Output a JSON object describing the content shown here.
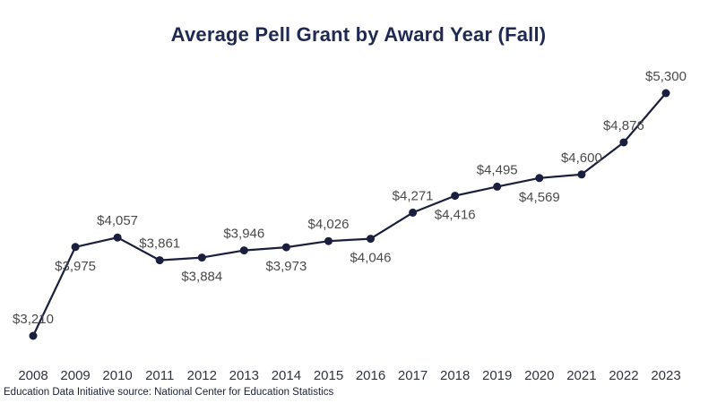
{
  "chart_data": {
    "type": "line",
    "title": "Average Pell Grant by Award Year (Fall)",
    "xlabel": "",
    "ylabel": "",
    "categories": [
      "2008",
      "2009",
      "2010",
      "2011",
      "2012",
      "2013",
      "2014",
      "2015",
      "2016",
      "2017",
      "2018",
      "2019",
      "2020",
      "2021",
      "2022",
      "2023"
    ],
    "series": [
      {
        "values": [
          3210,
          3975,
          4057,
          3861,
          3884,
          3946,
          3973,
          4026,
          4046,
          4271,
          4416,
          4495,
          4569,
          4600,
          4876,
          5300
        ],
        "labels": [
          "$3,210",
          "$3,975",
          "$4,057",
          "$3,861",
          "$3,884",
          "$3,946",
          "$3,973",
          "$4,026",
          "$4,046",
          "$4,271",
          "$4,416",
          "$4,495",
          "$4,569",
          "$4,600",
          "$4,876",
          "$5,300"
        ],
        "color": "#1a1f3d"
      }
    ],
    "label_positions": [
      "above",
      "below",
      "above",
      "above",
      "below",
      "above",
      "below",
      "above",
      "below",
      "above",
      "below",
      "above",
      "below",
      "above",
      "above",
      "above"
    ],
    "grid": false,
    "legend": "none"
  },
  "footer": {
    "source": "Education Data Initiative source: National Center for Education Statistics"
  }
}
